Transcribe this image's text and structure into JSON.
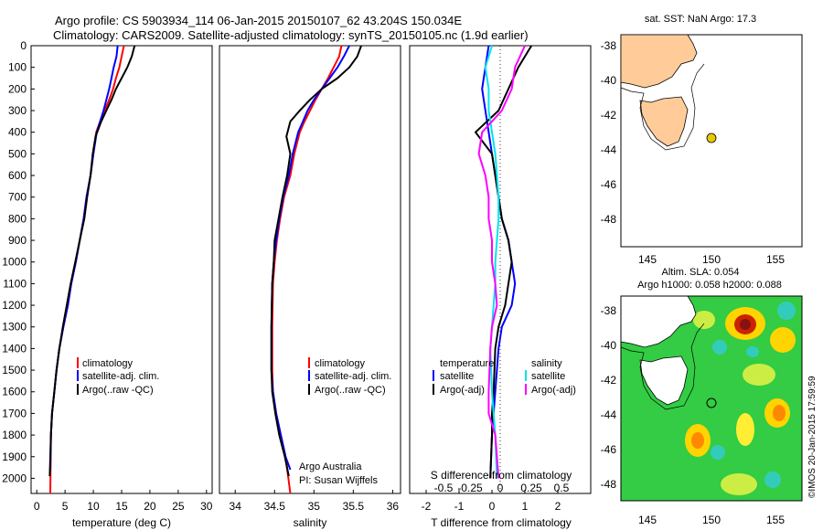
{
  "header": {
    "line1": "Argo profile: CS 5903934_114 06-Jan-2015 20150107_62 43.204S 150.034E",
    "line2": "Climatology: CARS2009. Satellite-adjusted climatology: synTS_20150105.nc (1.9d earlier)"
  },
  "colors": {
    "climatology": "#ff0000",
    "satellite": "#0000ff",
    "argo": "#000000",
    "magenta": "#ff00ff",
    "cyan": "#00e5ee",
    "land": "#ffcc99",
    "float": "#e8c800"
  },
  "chart_data": [
    {
      "id": "temperature",
      "type": "line",
      "xlabel": "temperature (deg C)",
      "ylabel": "",
      "xlim": [
        -1,
        31
      ],
      "ylim": [
        2070,
        0
      ],
      "xticks": [
        "0",
        "5",
        "10",
        "15",
        "20",
        "25",
        "30"
      ],
      "yticks": [
        "0",
        "100",
        "200",
        "300",
        "400",
        "500",
        "600",
        "700",
        "800",
        "900",
        "1000",
        "1100",
        "1200",
        "1300",
        "1400",
        "1500",
        "1600",
        "1700",
        "1800",
        "1900",
        "2000"
      ],
      "legend": [
        "climatology",
        "satellite-adj. clim.",
        "Argo(..raw -QC)"
      ],
      "series": [
        {
          "name": "climatology",
          "color": "#ff0000",
          "x": [
            15.4,
            15.0,
            14.6,
            14.0,
            13.5,
            12.8,
            12.0,
            11.2,
            10.5,
            10.0,
            9.5,
            8.8,
            8.3,
            7.6,
            6.9,
            6.1,
            5.5,
            4.7,
            4.0,
            3.5,
            3.1,
            2.7,
            2.5,
            2.4
          ],
          "y": [
            0,
            50,
            100,
            150,
            200,
            250,
            300,
            350,
            400,
            500,
            600,
            700,
            800,
            900,
            1000,
            1100,
            1200,
            1300,
            1400,
            1500,
            1600,
            1700,
            1800,
            2070
          ]
        },
        {
          "name": "satellite-adj. clim.",
          "color": "#0000ff",
          "x": [
            14.3,
            14.1,
            13.6,
            13.2,
            12.8,
            12.3,
            11.8,
            11.2,
            10.6,
            10.0,
            9.5,
            8.8,
            8.3,
            7.6,
            6.9,
            6.1,
            5.5,
            4.7,
            4.0,
            3.5,
            3.1,
            2.7,
            2.5,
            2.4
          ],
          "y": [
            0,
            50,
            100,
            150,
            200,
            250,
            300,
            350,
            400,
            500,
            600,
            700,
            800,
            900,
            1000,
            1100,
            1200,
            1300,
            1400,
            1500,
            1600,
            1700,
            1800,
            1960
          ]
        },
        {
          "name": "Argo(..raw -QC)",
          "color": "#000000",
          "x": [
            17.3,
            16.8,
            16.0,
            15.0,
            14.0,
            13.2,
            12.3,
            11.4,
            10.4,
            9.9,
            9.5,
            8.9,
            8.4,
            7.6,
            6.8,
            6.0,
            5.3,
            4.6,
            4.0,
            3.5,
            3.1,
            2.7,
            2.5,
            2.3
          ],
          "y": [
            0,
            50,
            100,
            150,
            200,
            250,
            300,
            350,
            420,
            500,
            600,
            700,
            800,
            900,
            1000,
            1100,
            1200,
            1300,
            1400,
            1500,
            1600,
            1700,
            1800,
            1990
          ]
        }
      ]
    },
    {
      "id": "salinity",
      "type": "line",
      "xlabel": "salinity",
      "xlim": [
        33.8,
        36.1
      ],
      "ylim": [
        2070,
        0
      ],
      "xticks": [
        "34",
        "34.5",
        "35",
        "35.5",
        "36"
      ],
      "legend": [
        "climatology",
        "satellite-adj. clim.",
        "Argo(..raw -QC)"
      ],
      "annotation": [
        "Argo Australia",
        "PI: Susan Wijffels"
      ],
      "series": [
        {
          "name": "climatology",
          "color": "#ff0000",
          "x": [
            35.35,
            35.32,
            35.25,
            35.18,
            35.1,
            35.02,
            34.95,
            34.88,
            34.82,
            34.75,
            34.7,
            34.62,
            34.57,
            34.53,
            34.5,
            34.48,
            34.47,
            34.47,
            34.48,
            34.52,
            34.58,
            34.64,
            34.7
          ],
          "y": [
            0,
            50,
            100,
            150,
            200,
            250,
            300,
            350,
            400,
            500,
            600,
            700,
            800,
            900,
            1000,
            1100,
            1300,
            1500,
            1600,
            1700,
            1800,
            1900,
            2070
          ]
        },
        {
          "name": "satellite-adj. clim.",
          "color": "#0000ff",
          "x": [
            35.45,
            35.38,
            35.3,
            35.2,
            35.1,
            35.0,
            34.92,
            34.86,
            34.8,
            34.73,
            34.68,
            34.61,
            34.56,
            34.52,
            34.49,
            34.47,
            34.46,
            34.46,
            34.48,
            34.52,
            34.58,
            34.64,
            34.7
          ],
          "y": [
            0,
            50,
            100,
            150,
            200,
            250,
            300,
            350,
            400,
            500,
            600,
            700,
            800,
            900,
            1000,
            1100,
            1300,
            1500,
            1600,
            1700,
            1800,
            1900,
            1960
          ]
        },
        {
          "name": "Argo(..raw -QC)",
          "color": "#000000",
          "x": [
            35.6,
            35.55,
            35.45,
            35.3,
            35.1,
            34.95,
            34.82,
            34.7,
            34.65,
            34.7,
            34.66,
            34.6,
            34.55,
            34.5,
            34.49,
            34.47,
            34.46,
            34.46,
            34.47,
            34.51,
            34.56,
            34.63,
            34.68
          ],
          "y": [
            0,
            50,
            100,
            150,
            200,
            250,
            300,
            350,
            420,
            500,
            600,
            700,
            800,
            900,
            1000,
            1100,
            1300,
            1500,
            1600,
            1700,
            1800,
            1900,
            1990
          ]
        }
      ]
    },
    {
      "id": "differences",
      "type": "line",
      "xlabel": "T difference from climatology",
      "xlabel2": "S difference from climatology",
      "xlim": [
        -2.5,
        3.0
      ],
      "ylim": [
        2070,
        0
      ],
      "xticks": [
        "-2",
        "-1",
        "0",
        "1",
        "2"
      ],
      "xticks2": [
        "-0.5",
        "-0.25",
        "0",
        "0.25",
        "0.5"
      ],
      "legend_titles": [
        "temperature",
        "salinity"
      ],
      "legend": [
        "satellite",
        "Argo(-adj)",
        "satellite",
        "Argo(-adj)"
      ],
      "series": [
        {
          "name": "temperature satellite",
          "color": "#0000ff",
          "x": [
            -0.1,
            -0.2,
            -0.3,
            -0.2,
            -0.1,
            0.0,
            0.1,
            0.2,
            0.3,
            0.5,
            0.6,
            0.7,
            0.6,
            0.3,
            0.2,
            0.1,
            0.05,
            0.0,
            -0.05
          ],
          "y": [
            0,
            100,
            200,
            300,
            400,
            500,
            600,
            700,
            800,
            900,
            1000,
            1100,
            1200,
            1300,
            1400,
            1600,
            1700,
            1800,
            2000
          ]
        },
        {
          "name": "temperature Argo(-adj)",
          "color": "#000000",
          "x": [
            1.2,
            0.8,
            0.5,
            0.2,
            -0.5,
            0.0,
            0.1,
            0.2,
            0.3,
            0.5,
            0.6,
            0.5,
            0.4,
            0.2,
            0.1,
            0.05,
            0.0,
            0.0,
            -0.05
          ],
          "y": [
            0,
            100,
            200,
            300,
            400,
            500,
            600,
            700,
            800,
            900,
            1000,
            1100,
            1200,
            1300,
            1400,
            1600,
            1700,
            1800,
            2000
          ]
        },
        {
          "name": "salinity satellite",
          "color": "#00e5ee",
          "x": [
            0.0,
            -0.2,
            -0.1,
            -0.1,
            0.0,
            0.1,
            0.15,
            0.2,
            0.2,
            0.15,
            0.1,
            0.1,
            0.05,
            0.0,
            -0.05,
            0.0,
            0.05,
            0.1,
            0.15
          ],
          "y": [
            0,
            100,
            200,
            300,
            400,
            500,
            600,
            700,
            800,
            900,
            1000,
            1100,
            1200,
            1300,
            1400,
            1600,
            1700,
            1800,
            2000
          ]
        },
        {
          "name": "salinity Argo(-adj)",
          "color": "#ff00ff",
          "x": [
            1.0,
            0.7,
            0.6,
            0.3,
            -0.3,
            -0.4,
            -0.2,
            -0.1,
            -0.1,
            0.0,
            0.0,
            0.1,
            0.15,
            0.0,
            -0.05,
            -0.1,
            -0.1,
            0.1,
            0.2
          ],
          "y": [
            0,
            100,
            200,
            300,
            400,
            500,
            600,
            700,
            800,
            900,
            1000,
            1100,
            1200,
            1300,
            1400,
            1600,
            1700,
            1800,
            2000
          ]
        }
      ]
    }
  ],
  "maps": {
    "top": {
      "title": "sat. SST: NaN Argo: 17.3",
      "xticks": [
        "145",
        "150",
        "155"
      ],
      "yticks": [
        "-38",
        "-40",
        "-42",
        "-44",
        "-46",
        "-48"
      ]
    },
    "bottom": {
      "title1": "Altim. SLA: 0.054",
      "title2": "Argo h1000: 0.058 h2000: 0.088",
      "xticks": [
        "145",
        "150",
        "155"
      ],
      "yticks": [
        "-38",
        "-40",
        "-42",
        "-44",
        "-46",
        "-48"
      ]
    },
    "credit": "©IMOS 20-Jan-2015 17:59:59"
  }
}
